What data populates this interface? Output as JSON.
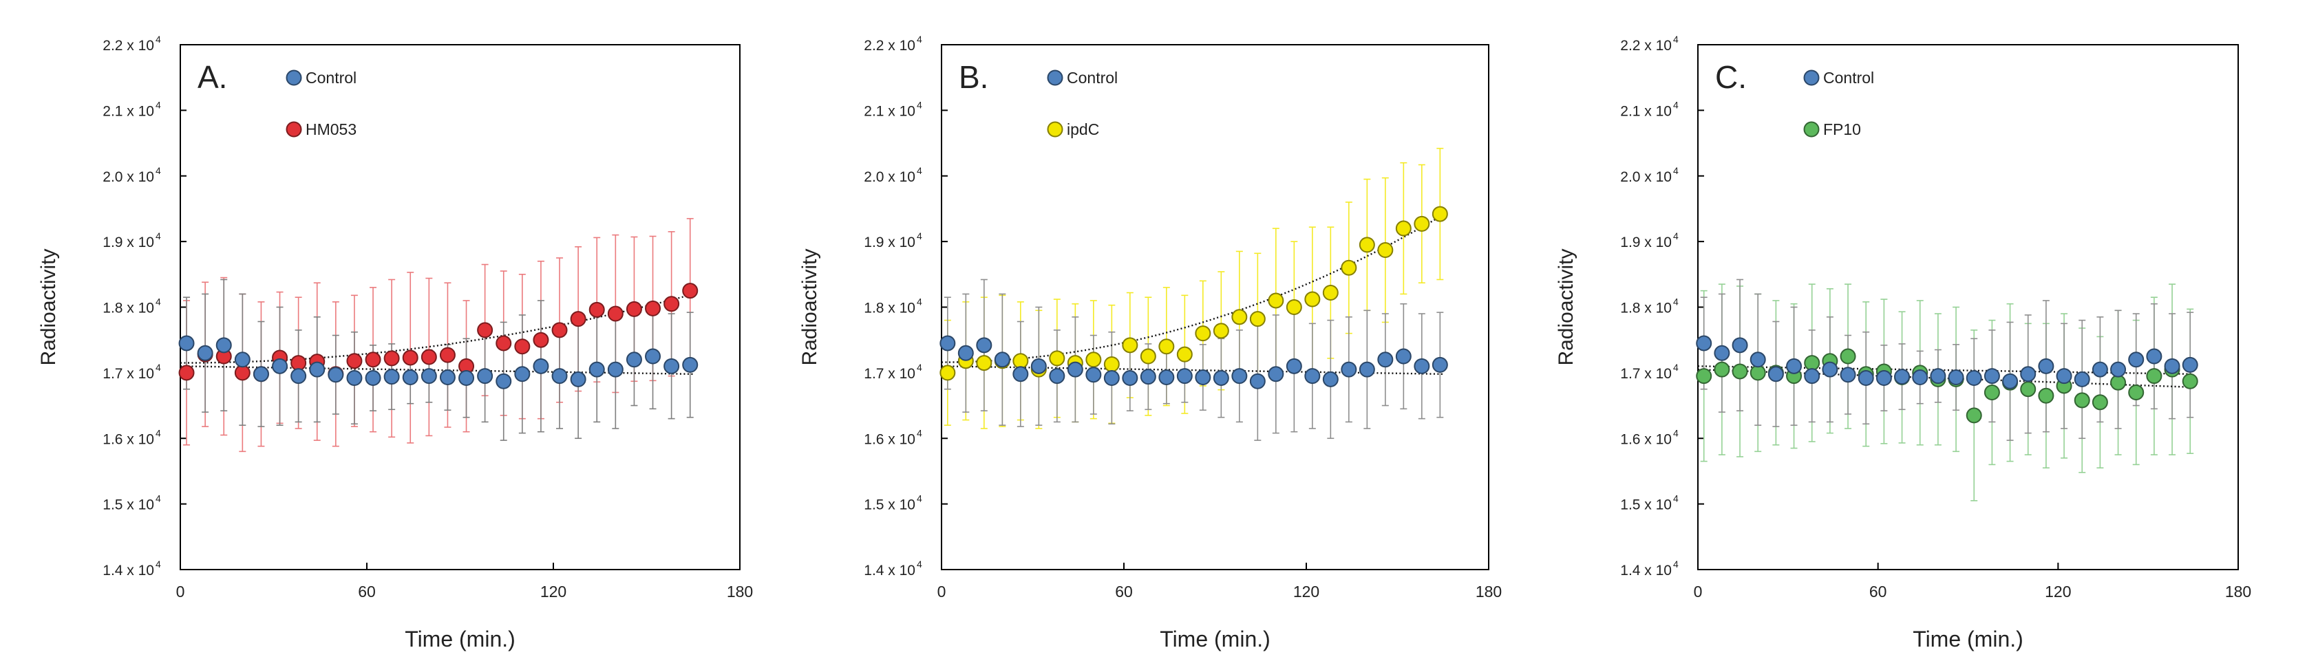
{
  "chart_data": [
    {
      "type": "scatter",
      "panel_label": "A.",
      "xlabel": "Time (min.)",
      "ylabel": "Radioactivity",
      "xlim": [
        0,
        180
      ],
      "ylim": [
        14000,
        22000
      ],
      "xticks": [
        "0",
        "60",
        "120",
        "180"
      ],
      "yticks": [
        "1.4 x 10",
        "1.5 x 10",
        "1.6 x 10",
        "1.7 x 10",
        "1.8 x 10",
        "1.9 x 10",
        "2.0 x 10",
        "2.1 x 10",
        "2.2 x 10"
      ],
      "ytick_exponent": "4",
      "legend_position": "top-left",
      "series": [
        {
          "name": "Control",
          "color": "#4f81bd",
          "x": [
            2,
            8,
            14,
            20,
            26,
            32,
            38,
            44,
            50,
            56,
            62,
            68,
            74,
            80,
            86,
            92,
            98,
            104,
            110,
            116,
            122,
            128,
            134,
            140,
            146,
            152,
            158,
            164
          ],
          "y": [
            17450,
            17300,
            17420,
            17200,
            16980,
            17100,
            16950,
            17050,
            16970,
            16920,
            16920,
            16940,
            16930,
            16950,
            16930,
            16920,
            16950,
            16870,
            16980,
            17100,
            16950,
            16900,
            17050,
            17050,
            17200,
            17250,
            17100,
            17120
          ],
          "err": [
            700,
            900,
            1000,
            1000,
            800,
            900,
            700,
            800,
            600,
            700,
            500,
            500,
            400,
            400,
            500,
            600,
            700,
            900,
            900,
            1000,
            800,
            900,
            800,
            900,
            700,
            800,
            800,
            800
          ],
          "trend": {
            "kind": "linear",
            "x0": 0,
            "x1": 165,
            "y0": 17100,
            "y1": 16980
          }
        },
        {
          "name": "HM053",
          "color": "#e03237",
          "x": [
            2,
            8,
            14,
            20,
            26,
            32,
            38,
            44,
            50,
            56,
            62,
            68,
            74,
            80,
            86,
            92,
            98,
            104,
            110,
            116,
            122,
            128,
            134,
            140,
            146,
            152,
            158,
            164
          ],
          "y": [
            17000,
            17280,
            17250,
            17000,
            16980,
            17230,
            17150,
            17170,
            16980,
            17180,
            17200,
            17220,
            17230,
            17240,
            17270,
            17100,
            17650,
            17450,
            17400,
            17500,
            17650,
            17820,
            17960,
            17900,
            17970,
            17980,
            18050,
            18250
          ],
          "err": [
            1100,
            1100,
            1200,
            1200,
            1100,
            1000,
            1000,
            1200,
            1100,
            1000,
            1100,
            1200,
            1300,
            1200,
            1100,
            1000,
            1000,
            1100,
            1100,
            1200,
            1100,
            1100,
            1100,
            1200,
            1100,
            1100,
            1100,
            1100
          ],
          "trend": {
            "kind": "quadratic",
            "a": 17150,
            "b": 0,
            "c": 0.0385
          }
        }
      ]
    },
    {
      "type": "scatter",
      "panel_label": "B.",
      "xlabel": "Time (min.)",
      "ylabel": "Radioactivity",
      "xlim": [
        0,
        180
      ],
      "ylim": [
        14000,
        22000
      ],
      "xticks": [
        "0",
        "60",
        "120",
        "180"
      ],
      "yticks": [
        "1.4 x 10",
        "1.5 x 10",
        "1.6 x 10",
        "1.7 x 10",
        "1.8 x 10",
        "1.9 x 10",
        "2.0 x 10",
        "2.1 x 10",
        "2.2 x 10"
      ],
      "ytick_exponent": "4",
      "legend_position": "top-left",
      "series": [
        {
          "name": "Control",
          "color": "#4f81bd",
          "x": [
            2,
            8,
            14,
            20,
            26,
            32,
            38,
            44,
            50,
            56,
            62,
            68,
            74,
            80,
            86,
            92,
            98,
            104,
            110,
            116,
            122,
            128,
            134,
            140,
            146,
            152,
            158,
            164
          ],
          "y": [
            17450,
            17300,
            17420,
            17200,
            16980,
            17100,
            16950,
            17050,
            16970,
            16920,
            16920,
            16940,
            16930,
            16950,
            16930,
            16920,
            16950,
            16870,
            16980,
            17100,
            16950,
            16900,
            17050,
            17050,
            17200,
            17250,
            17100,
            17120
          ],
          "err": [
            700,
            900,
            1000,
            1000,
            800,
            900,
            700,
            800,
            600,
            700,
            500,
            500,
            400,
            400,
            500,
            600,
            700,
            900,
            900,
            1000,
            800,
            900,
            800,
            900,
            700,
            800,
            800,
            800
          ],
          "trend": {
            "kind": "linear",
            "x0": 0,
            "x1": 165,
            "y0": 17100,
            "y1": 16980
          }
        },
        {
          "name": "ipdC",
          "color": "#f2e600",
          "x": [
            2,
            8,
            14,
            20,
            26,
            32,
            38,
            44,
            50,
            56,
            62,
            68,
            74,
            80,
            86,
            92,
            98,
            104,
            110,
            116,
            122,
            128,
            134,
            140,
            146,
            152,
            158,
            164
          ],
          "y": [
            17000,
            17180,
            17150,
            17180,
            17180,
            17050,
            17220,
            17150,
            17200,
            17130,
            17420,
            17250,
            17400,
            17280,
            17600,
            17640,
            17850,
            17820,
            18100,
            18000,
            18120,
            18220,
            18600,
            18950,
            18870,
            19200,
            19270,
            19420
          ],
          "err": [
            800,
            900,
            1000,
            1000,
            900,
            900,
            900,
            900,
            900,
            900,
            800,
            900,
            900,
            900,
            800,
            900,
            1000,
            1000,
            1100,
            1000,
            1100,
            1000,
            1000,
            1000,
            1100,
            1000,
            900,
            1000
          ],
          "trend": {
            "kind": "quadratic",
            "a": 17160,
            "b": 0,
            "c": 0.0825
          }
        }
      ]
    },
    {
      "type": "scatter",
      "panel_label": "C.",
      "xlabel": "Time (min.)",
      "ylabel": "Radioactivity",
      "xlim": [
        0,
        180
      ],
      "ylim": [
        14000,
        22000
      ],
      "xticks": [
        "0",
        "60",
        "120",
        "180"
      ],
      "yticks": [
        "1.4 x 10",
        "1.5 x 10",
        "1.6 x 10",
        "1.7 x 10",
        "1.8 x 10",
        "1.9 x 10",
        "2.0 x 10",
        "2.1 x 10",
        "2.2 x 10"
      ],
      "ytick_exponent": "4",
      "legend_position": "top-left",
      "series": [
        {
          "name": "Control",
          "color": "#4f81bd",
          "x": [
            2,
            8,
            14,
            20,
            26,
            32,
            38,
            44,
            50,
            56,
            62,
            68,
            74,
            80,
            86,
            92,
            98,
            104,
            110,
            116,
            122,
            128,
            134,
            140,
            146,
            152,
            158,
            164
          ],
          "y": [
            17450,
            17300,
            17420,
            17200,
            16980,
            17100,
            16950,
            17050,
            16970,
            16920,
            16920,
            16940,
            16930,
            16950,
            16930,
            16920,
            16950,
            16870,
            16980,
            17100,
            16950,
            16900,
            17050,
            17050,
            17200,
            17250,
            17100,
            17120
          ],
          "err": [
            700,
            900,
            1000,
            1000,
            800,
            900,
            700,
            800,
            600,
            700,
            500,
            500,
            400,
            400,
            500,
            600,
            700,
            900,
            900,
            1000,
            800,
            900,
            800,
            900,
            700,
            800,
            800,
            800
          ],
          "trend": {
            "kind": "linear",
            "x0": 0,
            "x1": 165,
            "y0": 17100,
            "y1": 16980
          }
        },
        {
          "name": "FP10",
          "color": "#5cb85c",
          "x": [
            2,
            8,
            14,
            20,
            26,
            32,
            38,
            44,
            50,
            56,
            62,
            68,
            74,
            80,
            86,
            92,
            98,
            104,
            110,
            116,
            122,
            128,
            134,
            140,
            146,
            152,
            158,
            164
          ],
          "y": [
            16950,
            17050,
            17020,
            17000,
            17000,
            16950,
            17150,
            17180,
            17250,
            16980,
            17020,
            16930,
            17000,
            16900,
            16900,
            16350,
            16700,
            16850,
            16750,
            16650,
            16800,
            16580,
            16550,
            16850,
            16700,
            16950,
            17050,
            16870
          ],
          "err": [
            1300,
            1300,
            1300,
            1200,
            1100,
            1100,
            1200,
            1100,
            1100,
            1100,
            1100,
            1000,
            1100,
            1000,
            1100,
            1300,
            1100,
            1200,
            1000,
            1100,
            1100,
            1100,
            1000,
            1100,
            1100,
            1200,
            1300,
            1100
          ],
          "trend": {
            "kind": "linear",
            "x0": 0,
            "x1": 165,
            "y0": 17050,
            "y1": 16780
          }
        }
      ]
    }
  ]
}
